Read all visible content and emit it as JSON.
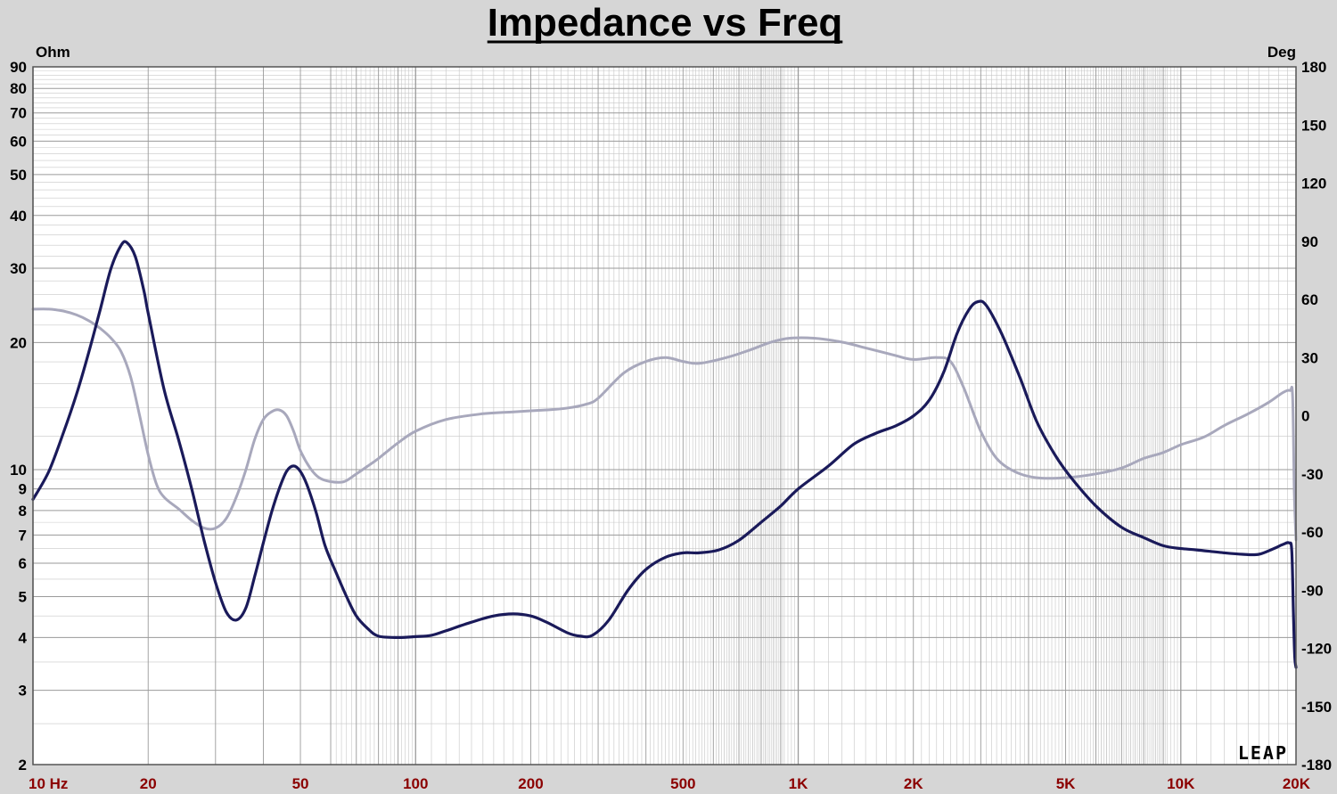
{
  "colors": {
    "background": "#d6d6d6",
    "plot_background": "#ffffff",
    "grid": "#9a9a9a",
    "axis_label": "#000000",
    "x_tick_label": "#8b0000",
    "impedance": "#1a1a5a",
    "phase": "#a8a8bc"
  },
  "logo": {
    "text": "LEAP"
  },
  "chart_data": {
    "type": "line",
    "title": "Impedance vs Freq",
    "xlabel": "",
    "ylabel": "Ohm",
    "y2label": "Deg",
    "x_scale": "log",
    "y_scale": "log",
    "xlim": [
      10,
      20000
    ],
    "ylim": [
      2,
      90
    ],
    "y2lim": [
      -180,
      180
    ],
    "grid": true,
    "x_ticks": [
      {
        "value": 10,
        "label": "10 Hz"
      },
      {
        "value": 20,
        "label": "20"
      },
      {
        "value": 50,
        "label": "50"
      },
      {
        "value": 100,
        "label": "100"
      },
      {
        "value": 200,
        "label": "200"
      },
      {
        "value": 500,
        "label": "500"
      },
      {
        "value": 1000,
        "label": "1K"
      },
      {
        "value": 2000,
        "label": "2K"
      },
      {
        "value": 5000,
        "label": "5K"
      },
      {
        "value": 10000,
        "label": "10K"
      },
      {
        "value": 20000,
        "label": "20K"
      }
    ],
    "y_ticks": [
      {
        "value": 2,
        "label": "2"
      },
      {
        "value": 3,
        "label": "3"
      },
      {
        "value": 4,
        "label": "4"
      },
      {
        "value": 5,
        "label": "5"
      },
      {
        "value": 6,
        "label": "6"
      },
      {
        "value": 7,
        "label": "7"
      },
      {
        "value": 8,
        "label": "8"
      },
      {
        "value": 9,
        "label": "9"
      },
      {
        "value": 10,
        "label": "10"
      },
      {
        "value": 20,
        "label": "20"
      },
      {
        "value": 30,
        "label": "30"
      },
      {
        "value": 40,
        "label": "40"
      },
      {
        "value": 50,
        "label": "50"
      },
      {
        "value": 60,
        "label": "60"
      },
      {
        "value": 70,
        "label": "70"
      },
      {
        "value": 80,
        "label": "80"
      },
      {
        "value": 90,
        "label": "90"
      }
    ],
    "y2_ticks": [
      {
        "value": 180,
        "label": "180"
      },
      {
        "value": 150,
        "label": "150"
      },
      {
        "value": 120,
        "label": "120"
      },
      {
        "value": 90,
        "label": "90"
      },
      {
        "value": 60,
        "label": "60"
      },
      {
        "value": 30,
        "label": "30"
      },
      {
        "value": 0,
        "label": "0"
      },
      {
        "value": -30,
        "label": "-30"
      },
      {
        "value": -60,
        "label": "-60"
      },
      {
        "value": -90,
        "label": "-90"
      },
      {
        "value": -120,
        "label": "-120"
      },
      {
        "value": -150,
        "label": "-150"
      },
      {
        "value": -180,
        "label": "-180"
      }
    ],
    "series": [
      {
        "axis": "left",
        "color": "#1a1a5a",
        "points": [
          [
            10,
            8.5
          ],
          [
            11,
            9.9
          ],
          [
            12,
            12.2
          ],
          [
            13,
            15.1
          ],
          [
            14,
            19.0
          ],
          [
            15,
            24.0
          ],
          [
            16,
            30.0
          ],
          [
            17,
            34.0
          ],
          [
            17.6,
            34.5
          ],
          [
            18.5,
            32.0
          ],
          [
            19.5,
            26.5
          ],
          [
            20,
            23.5
          ],
          [
            22,
            15.5
          ],
          [
            24,
            11.8
          ],
          [
            26,
            9.0
          ],
          [
            28,
            6.8
          ],
          [
            30,
            5.4
          ],
          [
            32,
            4.6
          ],
          [
            34,
            4.4
          ],
          [
            36,
            4.7
          ],
          [
            38,
            5.6
          ],
          [
            40,
            6.7
          ],
          [
            42,
            7.9
          ],
          [
            44,
            9.0
          ],
          [
            46,
            9.9
          ],
          [
            48,
            10.2
          ],
          [
            50,
            9.9
          ],
          [
            52,
            9.2
          ],
          [
            55,
            7.9
          ],
          [
            58,
            6.6
          ],
          [
            62,
            5.7
          ],
          [
            66,
            5.0
          ],
          [
            70,
            4.5
          ],
          [
            75,
            4.2
          ],
          [
            80,
            4.03
          ],
          [
            90,
            4.0
          ],
          [
            100,
            4.02
          ],
          [
            110,
            4.05
          ],
          [
            120,
            4.15
          ],
          [
            140,
            4.35
          ],
          [
            160,
            4.5
          ],
          [
            180,
            4.55
          ],
          [
            200,
            4.5
          ],
          [
            220,
            4.35
          ],
          [
            250,
            4.1
          ],
          [
            270,
            4.03
          ],
          [
            290,
            4.05
          ],
          [
            320,
            4.4
          ],
          [
            360,
            5.2
          ],
          [
            400,
            5.8
          ],
          [
            450,
            6.2
          ],
          [
            500,
            6.35
          ],
          [
            550,
            6.35
          ],
          [
            620,
            6.45
          ],
          [
            700,
            6.8
          ],
          [
            800,
            7.5
          ],
          [
            900,
            8.2
          ],
          [
            1000,
            9.0
          ],
          [
            1200,
            10.2
          ],
          [
            1400,
            11.5
          ],
          [
            1600,
            12.2
          ],
          [
            1800,
            12.7
          ],
          [
            2000,
            13.4
          ],
          [
            2200,
            14.6
          ],
          [
            2400,
            17.0
          ],
          [
            2600,
            21.0
          ],
          [
            2800,
            24.0
          ],
          [
            2950,
            25.0
          ],
          [
            3100,
            24.5
          ],
          [
            3400,
            21.0
          ],
          [
            3800,
            16.5
          ],
          [
            4200,
            13.0
          ],
          [
            4700,
            10.8
          ],
          [
            5200,
            9.5
          ],
          [
            6000,
            8.2
          ],
          [
            7000,
            7.3
          ],
          [
            8000,
            6.9
          ],
          [
            9000,
            6.6
          ],
          [
            10000,
            6.5
          ],
          [
            11000,
            6.45
          ],
          [
            13000,
            6.35
          ],
          [
            14500,
            6.3
          ],
          [
            16000,
            6.3
          ],
          [
            17500,
            6.5
          ],
          [
            18500,
            6.65
          ],
          [
            19200,
            6.7
          ],
          [
            19500,
            6.4
          ],
          [
            19700,
            4.5
          ],
          [
            19850,
            3.6
          ],
          [
            20000,
            3.4
          ]
        ]
      },
      {
        "axis": "right",
        "color": "#a8a8bc",
        "points": [
          [
            10,
            55
          ],
          [
            11,
            55
          ],
          [
            12,
            54
          ],
          [
            13,
            52
          ],
          [
            14,
            49
          ],
          [
            15,
            45
          ],
          [
            16,
            40
          ],
          [
            17,
            33
          ],
          [
            18,
            20
          ],
          [
            19,
            0
          ],
          [
            20,
            -20
          ],
          [
            21,
            -35
          ],
          [
            22,
            -42
          ],
          [
            24,
            -48
          ],
          [
            26,
            -54
          ],
          [
            28,
            -58
          ],
          [
            30,
            -58
          ],
          [
            32,
            -53
          ],
          [
            34,
            -42
          ],
          [
            36,
            -28
          ],
          [
            38,
            -12
          ],
          [
            40,
            -2
          ],
          [
            42,
            2
          ],
          [
            44,
            3
          ],
          [
            46,
            0
          ],
          [
            48,
            -8
          ],
          [
            50,
            -18
          ],
          [
            53,
            -27
          ],
          [
            56,
            -32
          ],
          [
            60,
            -34
          ],
          [
            65,
            -34
          ],
          [
            70,
            -30
          ],
          [
            75,
            -26
          ],
          [
            80,
            -22
          ],
          [
            90,
            -14
          ],
          [
            100,
            -8
          ],
          [
            120,
            -2
          ],
          [
            150,
            1
          ],
          [
            180,
            2
          ],
          [
            220,
            3
          ],
          [
            250,
            4
          ],
          [
            280,
            6
          ],
          [
            300,
            9
          ],
          [
            350,
            22
          ],
          [
            400,
            28
          ],
          [
            450,
            30
          ],
          [
            500,
            28
          ],
          [
            550,
            27
          ],
          [
            650,
            30
          ],
          [
            750,
            34
          ],
          [
            850,
            38
          ],
          [
            950,
            40
          ],
          [
            1100,
            40
          ],
          [
            1300,
            38
          ],
          [
            1500,
            35
          ],
          [
            1800,
            31
          ],
          [
            2000,
            29
          ],
          [
            2300,
            30
          ],
          [
            2500,
            28
          ],
          [
            2700,
            15
          ],
          [
            3000,
            -8
          ],
          [
            3300,
            -22
          ],
          [
            3700,
            -29
          ],
          [
            4200,
            -32
          ],
          [
            5000,
            -32
          ],
          [
            6000,
            -30
          ],
          [
            7000,
            -27
          ],
          [
            8000,
            -22
          ],
          [
            9000,
            -19
          ],
          [
            10000,
            -15
          ],
          [
            11500,
            -11
          ],
          [
            13000,
            -5
          ],
          [
            15000,
            1
          ],
          [
            17000,
            7
          ],
          [
            18500,
            12
          ],
          [
            19300,
            13
          ],
          [
            19600,
            10
          ],
          [
            19800,
            -40
          ],
          [
            20000,
            -64
          ]
        ]
      }
    ]
  }
}
